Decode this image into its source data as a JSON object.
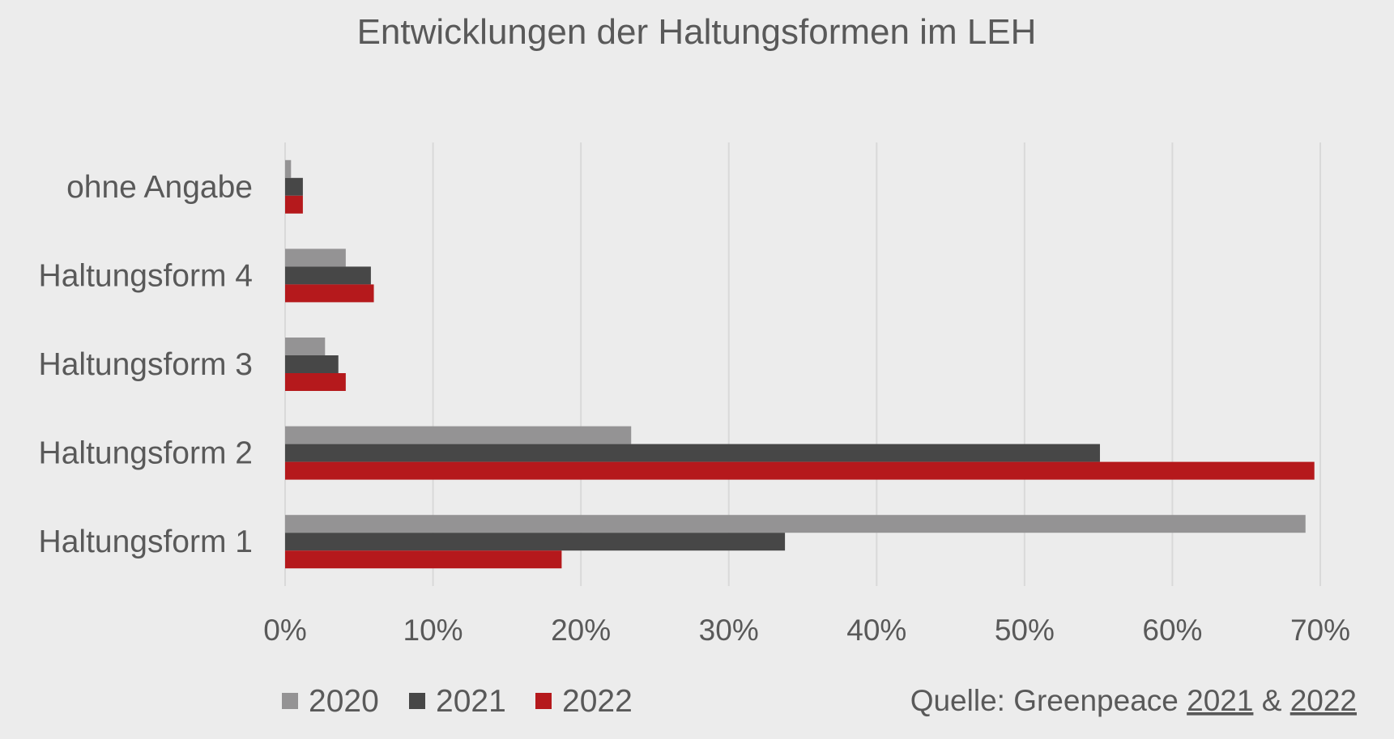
{
  "chart_data": {
    "type": "bar",
    "orientation": "horizontal",
    "title": "Entwicklungen der Haltungsformen im LEH",
    "categories": [
      "ohne Angabe",
      "Haltungsform 4",
      "Haltungsform 3",
      "Haltungsform 2",
      "Haltungsform 1"
    ],
    "series": [
      {
        "name": "2020",
        "color": "#949394",
        "values": [
          0.4,
          4.1,
          2.7,
          23.4,
          69.0
        ]
      },
      {
        "name": "2021",
        "color": "#474747",
        "values": [
          1.2,
          5.8,
          3.6,
          55.1,
          33.8
        ]
      },
      {
        "name": "2022",
        "color": "#b5191c",
        "values": [
          1.2,
          6.0,
          4.1,
          69.6,
          18.7
        ]
      }
    ],
    "xlim": [
      0,
      70
    ],
    "x_ticks": [
      "0%",
      "10%",
      "20%",
      "30%",
      "40%",
      "50%",
      "60%",
      "70%"
    ],
    "xlabel": "",
    "ylabel": "",
    "grid": "vertical",
    "legend_position": "bottom-left"
  },
  "source": {
    "prefix": "Quelle: Greenpeace ",
    "link1": "2021",
    "separator": " & ",
    "link2": "2022"
  }
}
